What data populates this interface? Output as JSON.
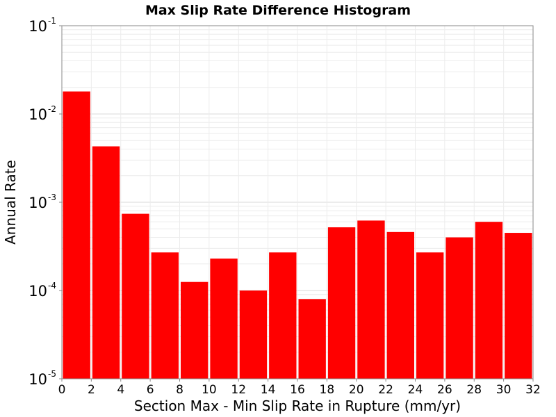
{
  "chart_data": {
    "type": "bar",
    "title": "Max Slip Rate Difference Histogram",
    "xlabel": "Section Max - Min Slip Rate in Rupture (mm/yr)",
    "ylabel": "Annual Rate",
    "xlim": [
      0,
      32
    ],
    "ylim": [
      1e-05,
      0.1
    ],
    "yscale": "log",
    "grid": true,
    "bar_color": "#ff0000",
    "bin_width": 2,
    "bin_starts": [
      0,
      2,
      4,
      6,
      8,
      10,
      12,
      14,
      16,
      18,
      20,
      22,
      24,
      26,
      28,
      30
    ],
    "values": [
      0.018,
      0.0043,
      0.00074,
      0.00027,
      0.000125,
      0.00023,
      0.0001,
      0.00027,
      8e-05,
      0.00052,
      0.00062,
      0.00046,
      0.00027,
      0.0004,
      0.0006,
      0.00045
    ],
    "x_ticks": [
      "0",
      "2",
      "4",
      "6",
      "8",
      "10",
      "12",
      "14",
      "16",
      "18",
      "20",
      "22",
      "24",
      "26",
      "28",
      "30",
      "32"
    ],
    "y_ticks": [
      {
        "base": "10",
        "exp": "-1"
      },
      {
        "base": "10",
        "exp": "-2"
      },
      {
        "base": "10",
        "exp": "-3"
      },
      {
        "base": "10",
        "exp": "-4"
      },
      {
        "base": "10",
        "exp": "-5"
      }
    ]
  }
}
